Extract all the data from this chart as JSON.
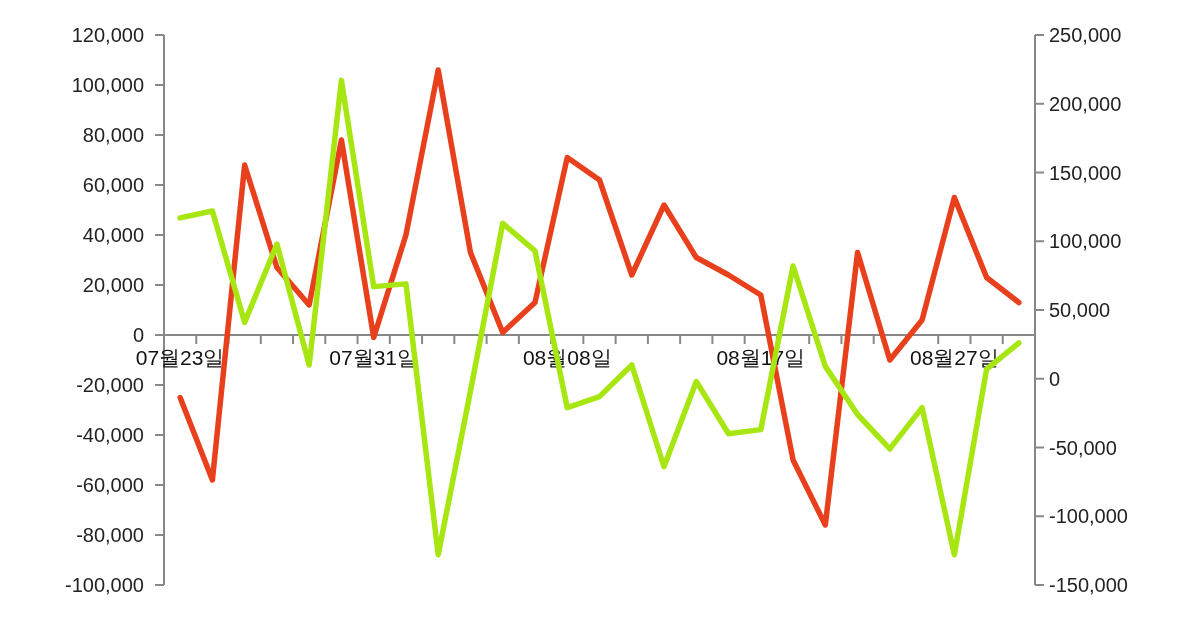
{
  "chart_data": {
    "type": "line",
    "categories": [
      "07월23일",
      null,
      null,
      null,
      null,
      null,
      "07월31일",
      null,
      null,
      null,
      null,
      null,
      "08월08일",
      null,
      null,
      null,
      null,
      null,
      "08월17일",
      null,
      null,
      null,
      null,
      null,
      "08월27일",
      null,
      null
    ],
    "series": [
      {
        "color": "#e8401c",
        "values": [
          -25000,
          -58000,
          68000,
          27000,
          12000,
          78000,
          -1000,
          40000,
          106000,
          33000,
          1000,
          13000,
          71000,
          62000,
          24000,
          52000,
          31000,
          24000,
          16000,
          -50000,
          -76000,
          33000,
          -10000,
          6000,
          55000,
          23000,
          13000
        ]
      },
      {
        "color": "#a8e612",
        "axis": "y2",
        "values": [
          117000,
          122000,
          41000,
          98000,
          10000,
          217000,
          67000,
          69000,
          -128000,
          -9000,
          113000,
          93000,
          -21000,
          -13000,
          10000,
          -64000,
          -2000,
          -40000,
          -37000,
          82000,
          9000,
          -26000,
          -51000,
          -21000,
          -128000,
          7000,
          26000
        ]
      }
    ],
    "ylim": [
      -100000,
      120000
    ],
    "yticks": [
      {
        "value": -100000,
        "label": "-100,000"
      },
      {
        "value": -80000,
        "label": "-80,000"
      },
      {
        "value": -60000,
        "label": "-60,000"
      },
      {
        "value": -40000,
        "label": "-40,000"
      },
      {
        "value": -20000,
        "label": "-20,000"
      },
      0,
      {
        "value": 20000,
        "label": "20,000"
      },
      {
        "value": 40000,
        "label": "40,000"
      },
      {
        "value": 60000,
        "label": "60,000"
      },
      {
        "value": 80000,
        "label": "80,000"
      },
      {
        "value": 100000,
        "label": "100,000"
      },
      {
        "value": 120000,
        "label": "120,000"
      }
    ],
    "y2lim": [
      -150000,
      250000
    ],
    "y2ticks": [
      {
        "value": -150000,
        "label": "-150,000"
      },
      {
        "value": -100000,
        "label": "-100,000"
      },
      {
        "value": -50000,
        "label": "-50,000"
      },
      0,
      {
        "value": 50000,
        "label": "50,000"
      },
      {
        "value": 100000,
        "label": "100,000"
      },
      {
        "value": 150000,
        "label": "150,000"
      },
      {
        "value": 200000,
        "label": "200,000"
      },
      {
        "value": 250000,
        "label": "250,000"
      }
    ]
  }
}
